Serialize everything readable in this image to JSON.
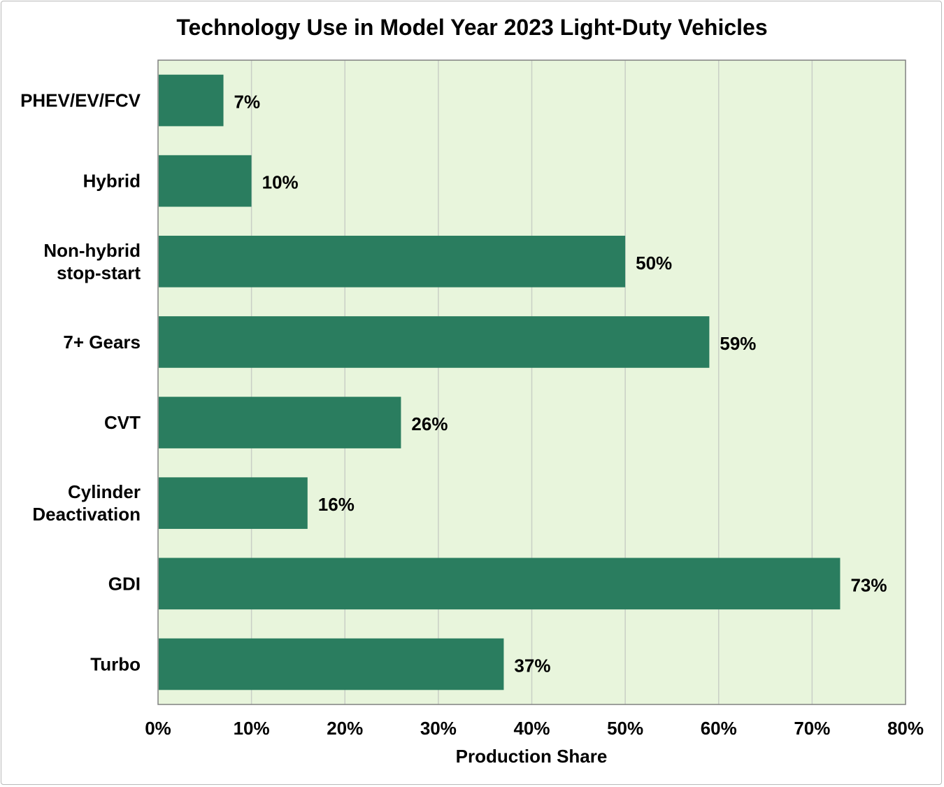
{
  "chart_data": {
    "type": "bar",
    "orientation": "horizontal",
    "title": "Technology Use in Model Year 2023 Light-Duty Vehicles",
    "xlabel": "Production Share",
    "ylabel": "",
    "xlim": [
      0,
      80
    ],
    "x_ticks": [
      0,
      10,
      20,
      30,
      40,
      50,
      60,
      70,
      80
    ],
    "tick_format": "%",
    "grid": true,
    "categories": [
      [
        "PHEV/EV/FCV"
      ],
      [
        "Hybrid"
      ],
      [
        "Non-hybrid",
        "stop-start"
      ],
      [
        "7+ Gears"
      ],
      [
        "CVT"
      ],
      [
        "Cylinder",
        "Deactivation"
      ],
      [
        "GDI"
      ],
      [
        "Turbo"
      ]
    ],
    "values": [
      7,
      10,
      50,
      59,
      26,
      16,
      73,
      37
    ],
    "data_labels": [
      "7%",
      "10%",
      "50%",
      "59%",
      "26%",
      "16%",
      "73%",
      "37%"
    ],
    "colors": {
      "bar": "#2a7d5f",
      "plot_background": "#e8f5dc",
      "gridline": "#c9cfc6",
      "axis": "#808080"
    }
  }
}
